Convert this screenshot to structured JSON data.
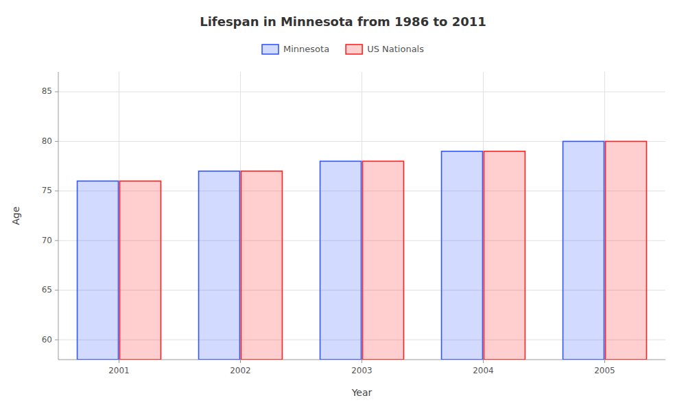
{
  "chart_data": {
    "type": "bar",
    "title": "Lifespan in Minnesota from 1986 to 2011",
    "x_label": "Year",
    "y_label": "Age",
    "categories": [
      "2001",
      "2002",
      "2003",
      "2004",
      "2005"
    ],
    "series": [
      {
        "name": "Minnesota",
        "color": "#3355ff",
        "values": [
          76.0,
          77.0,
          78.0,
          79.0,
          80.0
        ]
      },
      {
        "name": "US Nationals",
        "color": "#ff2222",
        "values": [
          76.0,
          77.0,
          78.0,
          79.0,
          80.0
        ]
      }
    ],
    "ylim": [
      58,
      87
    ],
    "yticks": [
      60,
      65,
      70,
      75,
      80,
      85
    ],
    "grid": true,
    "legend": "top"
  }
}
